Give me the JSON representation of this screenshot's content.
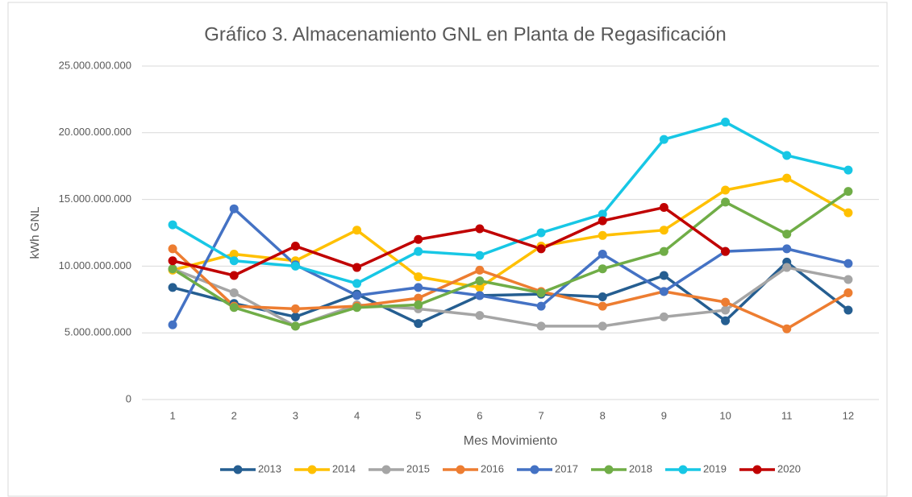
{
  "chart_data": {
    "type": "line",
    "title": "Gráfico 3. Almacenamiento GNL en Planta de Regasificación",
    "xlabel": "Mes Movimiento",
    "ylabel": "kWh GNL",
    "categories": [
      "1",
      "2",
      "3",
      "4",
      "5",
      "6",
      "7",
      "8",
      "9",
      "10",
      "11",
      "12"
    ],
    "series": [
      {
        "name": "2013",
        "color": "#255e91",
        "values": [
          8400000000,
          7200000000,
          6200000000,
          7900000000,
          5700000000,
          7800000000,
          7900000000,
          7700000000,
          9300000000,
          5900000000,
          10300000000,
          6700000000
        ]
      },
      {
        "name": "2014",
        "color": "#ffc000",
        "values": [
          9700000000,
          10900000000,
          10400000000,
          12700000000,
          9200000000,
          8400000000,
          11500000000,
          12300000000,
          12700000000,
          15700000000,
          16600000000,
          14000000000
        ]
      },
      {
        "name": "2015",
        "color": "#a5a5a5",
        "values": [
          9800000000,
          8000000000,
          5500000000,
          7100000000,
          6800000000,
          6300000000,
          5500000000,
          5500000000,
          6200000000,
          6700000000,
          9900000000,
          9000000000
        ]
      },
      {
        "name": "2016",
        "color": "#ed7d31",
        "values": [
          11300000000,
          7000000000,
          6800000000,
          7000000000,
          7600000000,
          9700000000,
          8100000000,
          7000000000,
          8100000000,
          7300000000,
          5300000000,
          8000000000
        ]
      },
      {
        "name": "2017",
        "color": "#4472c4",
        "values": [
          5600000000,
          14300000000,
          10100000000,
          7800000000,
          8400000000,
          7800000000,
          7000000000,
          10900000000,
          8100000000,
          11100000000,
          11300000000,
          10200000000
        ]
      },
      {
        "name": "2018",
        "color": "#70ad47",
        "values": [
          9800000000,
          6900000000,
          5500000000,
          6900000000,
          7100000000,
          8900000000,
          8000000000,
          9800000000,
          11100000000,
          14800000000,
          12400000000,
          15600000000
        ]
      },
      {
        "name": "2019",
        "color": "#17c7e5",
        "values": [
          13100000000,
          10400000000,
          10000000000,
          8700000000,
          11100000000,
          10800000000,
          12500000000,
          13900000000,
          19500000000,
          20800000000,
          18300000000,
          17200000000
        ]
      },
      {
        "name": "2020",
        "color": "#c00000",
        "values": [
          10400000000,
          9300000000,
          11500000000,
          9900000000,
          12000000000,
          12800000000,
          11300000000,
          13400000000,
          14400000000,
          11100000000,
          null,
          null
        ]
      }
    ],
    "ylim": [
      0,
      25000000000
    ],
    "yticks": [
      0,
      {
        "value": 5000000000,
        "label": "5.000.000.000"
      },
      {
        "value": 10000000000,
        "label": "10.000.000.000"
      },
      {
        "value": 15000000000,
        "label": "15.000.000.000"
      },
      {
        "value": 20000000000,
        "label": "20.000.000.000"
      },
      {
        "value": 25000000000,
        "label": "25.000.000.000"
      }
    ],
    "grid": true,
    "legend": "bottom"
  }
}
